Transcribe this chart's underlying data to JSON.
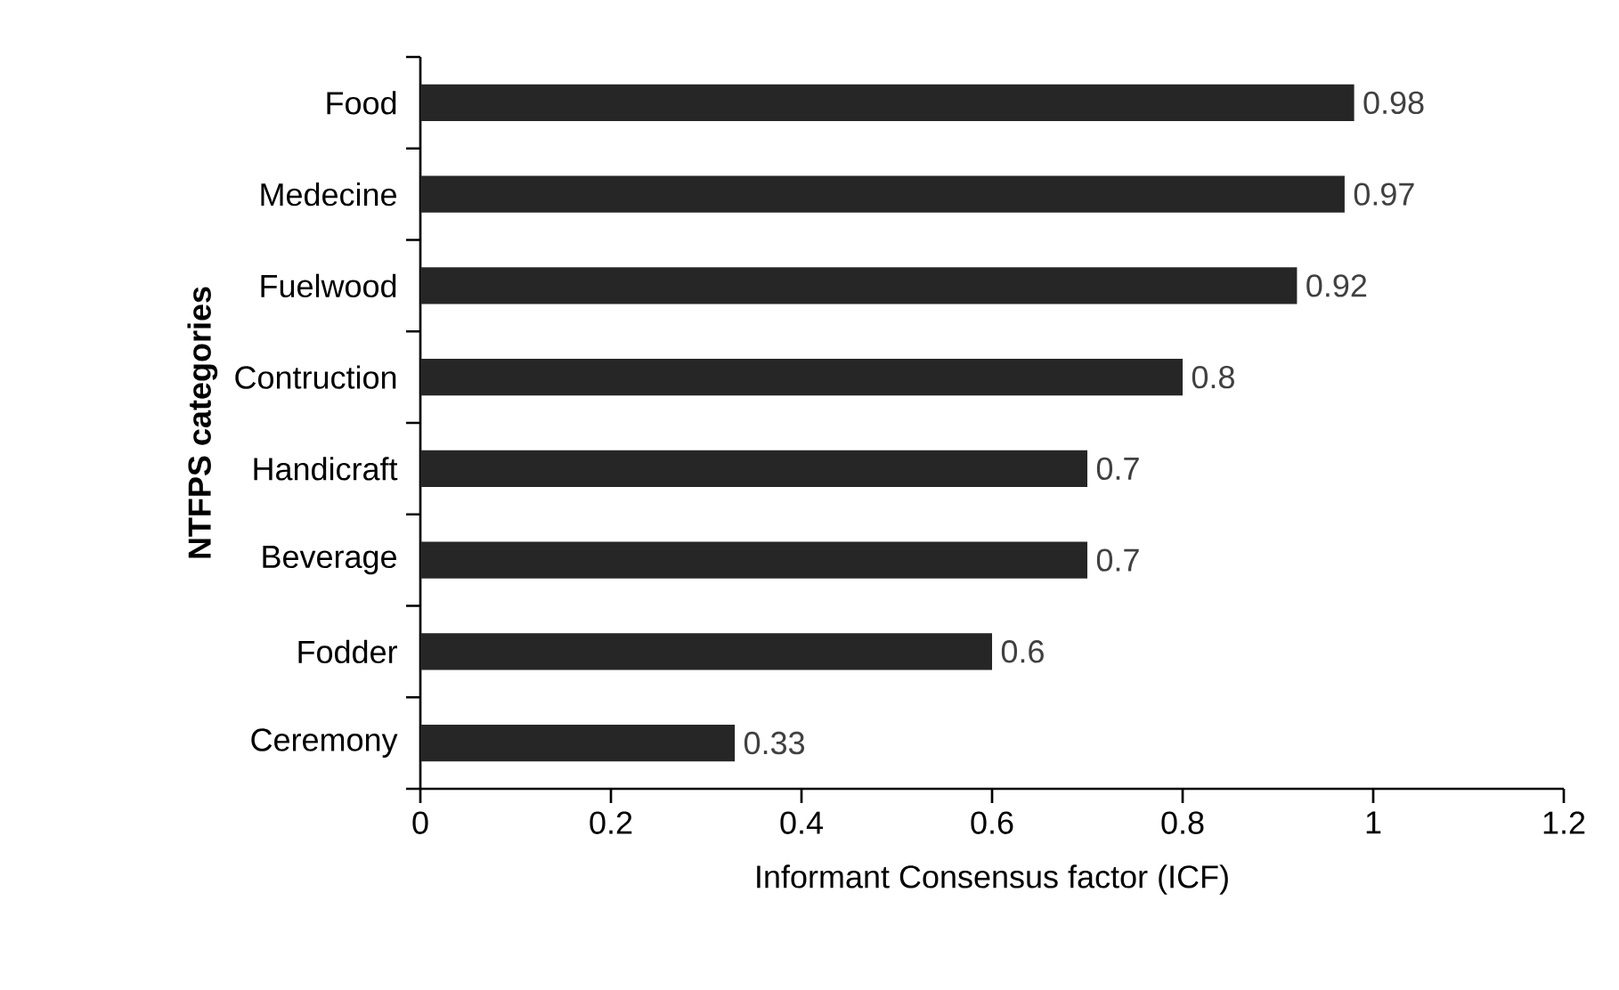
{
  "chart_data": {
    "type": "bar",
    "orientation": "horizontal",
    "categories": [
      "Food",
      "Medecine",
      "Fuelwood",
      "Contruction",
      "Handicraft",
      "Beverage",
      "Fodder",
      "Ceremony"
    ],
    "values": [
      0.98,
      0.97,
      0.92,
      0.8,
      0.7,
      0.7,
      0.6,
      0.33
    ],
    "color": "#262626",
    "xlim": [
      0,
      1.2
    ],
    "xticks": [
      0,
      0.2,
      0.4,
      0.6,
      0.8,
      1,
      1.2
    ],
    "xlabel": "Informant Consensus factor (ICF)",
    "ylabel": "NTFPS categories",
    "data_labels": true,
    "grid": false
  }
}
